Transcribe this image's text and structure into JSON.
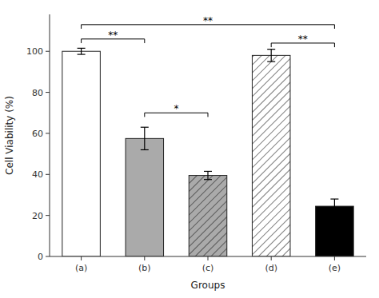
{
  "chart_data": {
    "type": "bar",
    "categories": [
      "(a)",
      "(b)",
      "(c)",
      "(d)",
      "(e)"
    ],
    "values": [
      100,
      57.5,
      39.5,
      98,
      24.5
    ],
    "errors": [
      1.5,
      5.5,
      2.0,
      3.0,
      3.5
    ],
    "colors": [
      "white",
      "#aaaaaa",
      "#aaaaaa",
      "white",
      "black"
    ],
    "xlabel": "Groups",
    "ylabel": "Cell Viability (%)",
    "ylim": [
      0,
      118
    ],
    "yticks": [
      0,
      20,
      40,
      60,
      80,
      100
    ],
    "grid": false,
    "annotations": [
      {
        "text": "**",
        "between": [
          "(a)",
          "(b)"
        ],
        "y": 106
      },
      {
        "text": "**",
        "between": [
          "(a)",
          "(e)"
        ],
        "y": 113
      },
      {
        "text": "*",
        "between": [
          "(b)",
          "(c)"
        ],
        "y": 70
      },
      {
        "text": "**",
        "between": [
          "(d)",
          "(e)"
        ],
        "y": 104
      }
    ]
  }
}
